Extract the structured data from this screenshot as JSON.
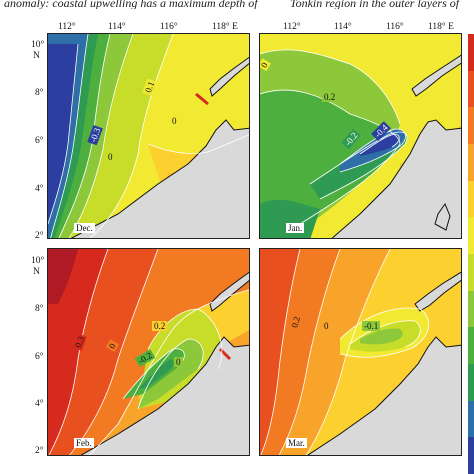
{
  "caption": {
    "left": "anomaly: coastal upwelling has a maximum depth of",
    "right": "Tonkin region in the outer layers of"
  },
  "axes": {
    "lon_ticks": [
      "112°",
      "114°",
      "116°",
      "118° E"
    ],
    "lat_ticks_top": [
      "10°",
      "N",
      "8°",
      "6°",
      "4°",
      "2°"
    ],
    "lat_ticks_bottom": [
      "10°",
      "N",
      "8°",
      "6°",
      "4°",
      "2°"
    ]
  },
  "panels": [
    {
      "name": "Dec.",
      "contour_labels": [
        "0.1",
        "-0.3",
        "0",
        "0"
      ]
    },
    {
      "name": "Jan.",
      "contour_labels": [
        "0",
        "0.2",
        "-0.2",
        "-0.4"
      ]
    },
    {
      "name": "Feb.",
      "contour_labels": [
        "0.3",
        "0",
        "0.2",
        "-0.2",
        "0"
      ]
    },
    {
      "name": "Mar.",
      "contour_labels": [
        "0.2",
        "-0.1",
        "0"
      ]
    }
  ],
  "colorbar": {
    "colors": [
      "#d62a1e",
      "#e8501f",
      "#f27a22",
      "#f8a42a",
      "#fcd02f",
      "#f2ea32",
      "#c8dc2a",
      "#8cc83a",
      "#4caf3e",
      "#2e9a52",
      "#2f6fa8",
      "#2c3fa0"
    ]
  },
  "colors": {
    "land": "#d9d9d9",
    "coast": "#111111",
    "contour": "#ffffff"
  }
}
